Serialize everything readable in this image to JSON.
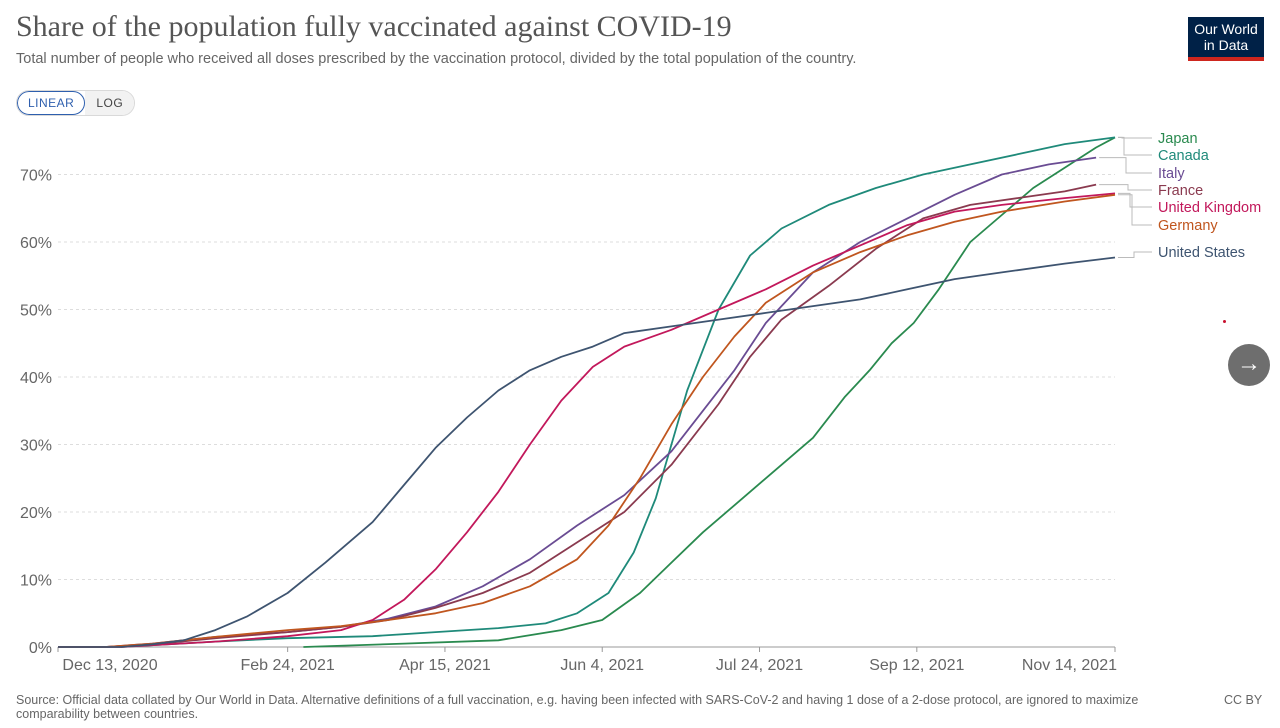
{
  "header": {
    "title": "Share of the population fully vaccinated against COVID-19",
    "subtitle": "Total number of people who received all doses prescribed by the vaccination protocol, divided by the total population of the country.",
    "logo_line1": "Our World",
    "logo_line2": "in Data"
  },
  "controls": {
    "linear_label": "LINEAR",
    "log_label": "LOG",
    "next_label": "→"
  },
  "footer": {
    "source": "Source: Official data collated by Our World in Data. Alternative definitions of a full vaccination, e.g. having been infected with SARS-CoV-2 and having 1 dose of a 2-dose protocol, are ignored to maximize comparability between countries.",
    "license": "CC BY"
  },
  "chart_data": {
    "type": "line",
    "title": "Share of the population fully vaccinated against COVID-19",
    "xlabel": "",
    "ylabel": "",
    "x_unit": "days since Dec 13, 2020",
    "xlim": [
      0,
      336
    ],
    "ylim": [
      0,
      75
    ],
    "y_ticks": [
      0,
      10,
      20,
      30,
      40,
      50,
      60,
      70
    ],
    "y_tick_labels": [
      "0%",
      "10%",
      "20%",
      "30%",
      "40%",
      "50%",
      "60%",
      "70%"
    ],
    "x_ticks": [
      0,
      73,
      123,
      173,
      223,
      273,
      336
    ],
    "x_tick_labels": [
      "Dec 13, 2020",
      "Feb 24, 2021",
      "Apr 15, 2021",
      "Jun 4, 2021",
      "Jul 24, 2021",
      "Sep 12, 2021",
      "Nov 14, 2021"
    ],
    "grid": "horizontal dashed",
    "legend_placement": "right end labels",
    "series": [
      {
        "name": "Japan",
        "color": "#2a8a4f",
        "x": [
          78,
          110,
          140,
          160,
          173,
          185,
          195,
          205,
          215,
          225,
          240,
          250,
          258,
          265,
          272,
          280,
          290,
          300,
          310,
          320,
          330,
          336
        ],
        "y": [
          0,
          0.5,
          1,
          2.5,
          4,
          8,
          12.5,
          17,
          21,
          25,
          31,
          37,
          41,
          45,
          48,
          53,
          60,
          64,
          68,
          71,
          74,
          75.5
        ]
      },
      {
        "name": "Canada",
        "color": "#1f8a7a",
        "x": [
          20,
          50,
          73,
          100,
          120,
          140,
          155,
          165,
          175,
          183,
          190,
          200,
          210,
          220,
          230,
          245,
          260,
          275,
          290,
          305,
          320,
          336
        ],
        "y": [
          0,
          0.8,
          1.3,
          1.6,
          2.2,
          2.8,
          3.5,
          5,
          8,
          14,
          22,
          38,
          50,
          58,
          62,
          65.5,
          68,
          70,
          71.5,
          73,
          74.5,
          75.5
        ]
      },
      {
        "name": "Italy",
        "color": "#6a4c93",
        "x": [
          0,
          15,
          30,
          50,
          73,
          90,
          105,
          120,
          135,
          150,
          165,
          180,
          195,
          205,
          215,
          225,
          240,
          255,
          270,
          285,
          300,
          315,
          330
        ],
        "y": [
          0,
          0,
          0.5,
          1.5,
          2.2,
          3,
          4.2,
          6,
          9,
          13,
          18,
          22.5,
          29,
          35,
          41,
          48,
          55.5,
          60,
          63.5,
          67,
          70,
          71.5,
          72.5
        ]
      },
      {
        "name": "France",
        "color": "#8a3a4f",
        "x": [
          0,
          15,
          30,
          50,
          73,
          90,
          105,
          120,
          135,
          150,
          165,
          180,
          195,
          210,
          220,
          230,
          245,
          260,
          275,
          290,
          305,
          320,
          330
        ],
        "y": [
          0,
          0,
          0.4,
          1.3,
          2.2,
          3,
          4,
          5.8,
          8,
          11,
          15.5,
          20,
          27,
          36,
          43,
          48.5,
          53.5,
          59,
          63.5,
          65.5,
          66.5,
          67.5,
          68.5
        ]
      },
      {
        "name": "United Kingdom",
        "color": "#c2185b",
        "x": [
          0,
          20,
          50,
          73,
          90,
          100,
          110,
          120,
          130,
          140,
          150,
          160,
          170,
          180,
          195,
          210,
          225,
          240,
          255,
          270,
          285,
          300,
          320,
          336
        ],
        "y": [
          0,
          0,
          0.8,
          1.6,
          2.5,
          4,
          7,
          11.5,
          17,
          23,
          30,
          36.5,
          41.5,
          44.5,
          47,
          50,
          53,
          56.5,
          59.5,
          62.5,
          64.5,
          65.5,
          66.5,
          67.2
        ]
      },
      {
        "name": "Germany",
        "color": "#c0561f",
        "x": [
          0,
          15,
          30,
          50,
          73,
          90,
          105,
          120,
          135,
          150,
          165,
          175,
          185,
          195,
          205,
          215,
          225,
          240,
          255,
          270,
          285,
          300,
          320,
          336
        ],
        "y": [
          0,
          0,
          0.5,
          1.5,
          2.5,
          3.1,
          4,
          5,
          6.5,
          9,
          13,
          18,
          25,
          33,
          40,
          46,
          51,
          55.5,
          58.5,
          61,
          63,
          64.5,
          66,
          67
        ]
      },
      {
        "name": "United States",
        "color": "#3e5470",
        "x": [
          0,
          20,
          30,
          40,
          50,
          60,
          73,
          85,
          100,
          110,
          120,
          130,
          140,
          150,
          160,
          170,
          180,
          195,
          210,
          225,
          240,
          255,
          270,
          285,
          300,
          320,
          336
        ],
        "y": [
          0,
          0,
          0.4,
          1,
          2.5,
          4.5,
          8,
          12.5,
          18.5,
          24,
          29.5,
          34,
          38,
          41,
          43,
          44.5,
          46.5,
          47.5,
          48.5,
          49.5,
          50.5,
          51.5,
          53,
          54.5,
          55.5,
          56.8,
          57.7
        ]
      }
    ]
  }
}
